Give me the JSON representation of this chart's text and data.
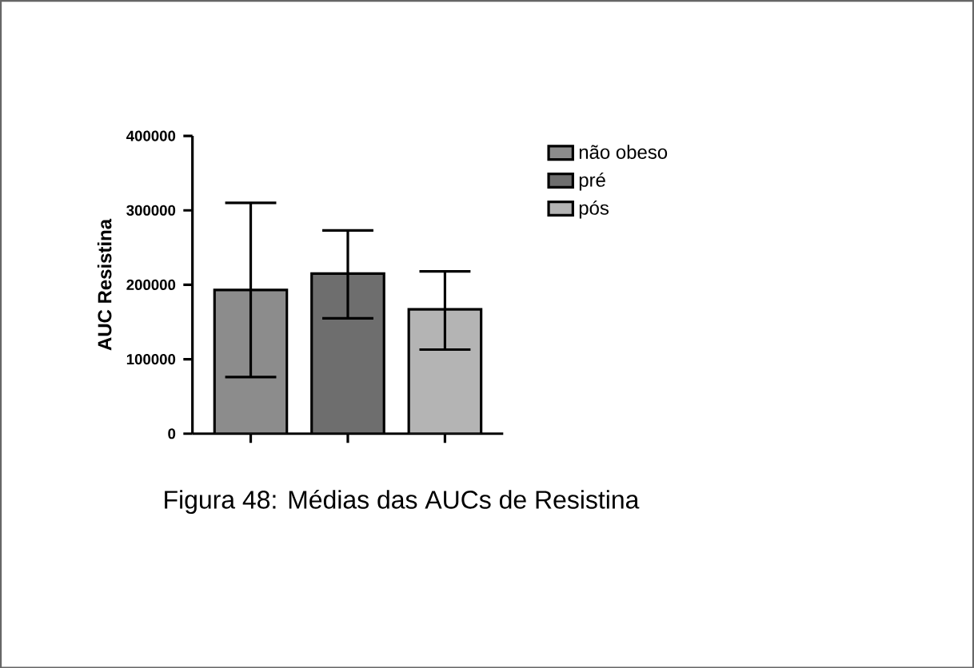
{
  "chart_data": {
    "type": "bar",
    "ylabel": "AUC Resistina",
    "categories": [
      null,
      null,
      null
    ],
    "series": [
      {
        "name": "não obeso",
        "color": "#8c8c8c",
        "values": [
          193000,
          null,
          null
        ],
        "errors": [
          [
            76000,
            310000
          ],
          null,
          null
        ]
      },
      {
        "name": "pré",
        "color": "#6e6e6e",
        "values": [
          null,
          215000,
          null
        ],
        "errors": [
          null,
          [
            155000,
            273000
          ],
          null
        ]
      },
      {
        "name": "pós",
        "color": "#b4b4b4",
        "values": [
          null,
          null,
          167000
        ],
        "errors": [
          null,
          null,
          [
            113000,
            218000
          ]
        ]
      }
    ],
    "ylim": [
      0,
      400000
    ],
    "yticks": [
      0,
      100000,
      200000,
      300000,
      400000
    ],
    "legend": "top right",
    "grid": false,
    "annotations": [
      "Figura 48: Médias das AUCs de Resistina"
    ]
  }
}
